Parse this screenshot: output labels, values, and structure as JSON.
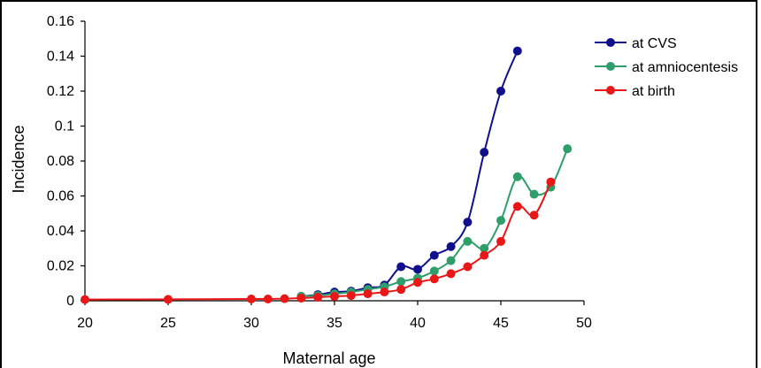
{
  "chart_data": {
    "type": "line",
    "title": "",
    "xlabel": "Maternal age",
    "ylabel": "Incidence",
    "xlim": [
      20,
      50
    ],
    "ylim": [
      0,
      0.16
    ],
    "xticks": [
      20,
      25,
      30,
      35,
      40,
      45,
      50
    ],
    "yticks": [
      0,
      0.02,
      0.04,
      0.06,
      0.08,
      0.1,
      0.12,
      0.14,
      0.16
    ],
    "ytick_labels": [
      "0",
      "0.02",
      "0.04",
      "0.06",
      "0.08",
      "0.1",
      "0.12",
      "0.14",
      "0.16"
    ],
    "grid": false,
    "legend_position": "right",
    "series": [
      {
        "name": "at CVS",
        "color": "#10108c",
        "x": [
          33,
          34,
          35,
          36,
          37,
          38,
          39,
          40,
          41,
          42,
          43,
          44,
          45,
          46
        ],
        "y": [
          0.0025,
          0.0035,
          0.005,
          0.0055,
          0.0075,
          0.009,
          0.0195,
          0.018,
          0.026,
          0.031,
          0.045,
          0.085,
          0.12,
          0.143
        ]
      },
      {
        "name": "at amniocentesis",
        "color": "#2e9e6a",
        "x": [
          33,
          34,
          35,
          36,
          37,
          38,
          39,
          40,
          41,
          42,
          43,
          44,
          45,
          46,
          47,
          48,
          49
        ],
        "y": [
          0.0025,
          0.003,
          0.004,
          0.005,
          0.0065,
          0.008,
          0.011,
          0.013,
          0.017,
          0.023,
          0.034,
          0.03,
          0.046,
          0.071,
          0.061,
          0.065,
          0.087
        ]
      },
      {
        "name": "at birth",
        "color": "#e81818",
        "x": [
          20,
          25,
          30,
          31,
          32,
          33,
          34,
          35,
          36,
          37,
          38,
          39,
          40,
          41,
          42,
          43,
          44,
          45,
          46,
          47,
          48
        ],
        "y": [
          0.0007,
          0.0008,
          0.001,
          0.001,
          0.0012,
          0.0015,
          0.002,
          0.0025,
          0.003,
          0.004,
          0.005,
          0.0065,
          0.0105,
          0.0125,
          0.0155,
          0.0195,
          0.026,
          0.034,
          0.054,
          0.049,
          0.068
        ]
      }
    ]
  }
}
